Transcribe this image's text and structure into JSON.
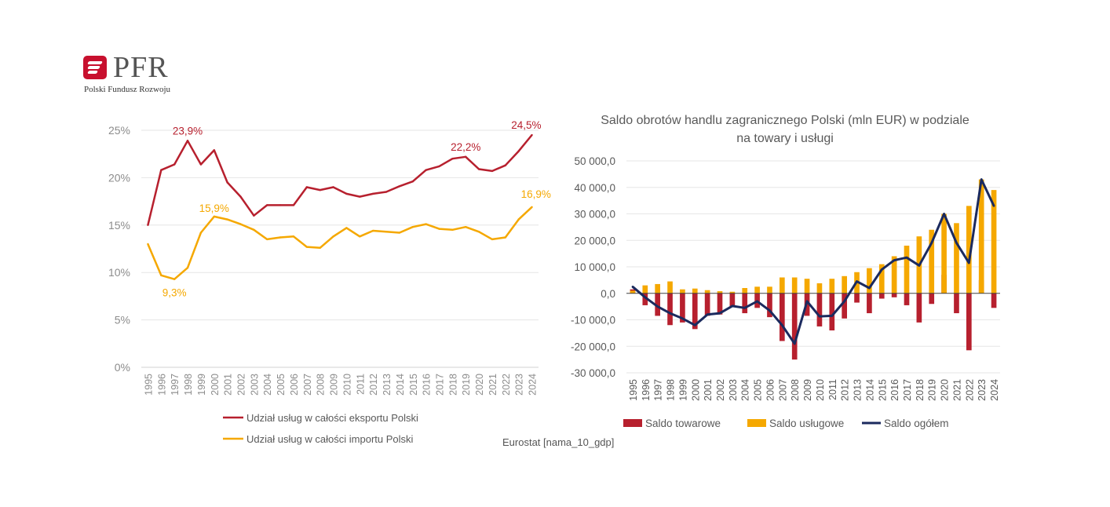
{
  "logo": {
    "brand": "PFR",
    "subtitle": "Polski Fundusz Rozwoju",
    "icon": "pfr-logo-icon"
  },
  "source": "Eurostat [nama_10_gdp]",
  "colors": {
    "red": "#b7202e",
    "orange": "#f5a800",
    "navy": "#1b2a5e",
    "axis": "#8c8c8c",
    "grid": "#e6e6e6",
    "text": "#595959"
  },
  "chart_data": [
    {
      "type": "line",
      "title": "",
      "xlabel": "",
      "ylabel": "",
      "x": [
        "1995",
        "1996",
        "1997",
        "1998",
        "1999",
        "2000",
        "2001",
        "2002",
        "2003",
        "2004",
        "2005",
        "2006",
        "2007",
        "2008",
        "2009",
        "2010",
        "2011",
        "2012",
        "2013",
        "2014",
        "2015",
        "2016",
        "2017",
        "2018",
        "2019",
        "2020",
        "2021",
        "2022",
        "2023",
        "2024"
      ],
      "ylim": [
        0,
        25
      ],
      "yticks": [
        "0%",
        "5%",
        "10%",
        "15%",
        "20%",
        "25%"
      ],
      "grid": true,
      "legend_position": "bottom",
      "series": [
        {
          "name": "Udział usług w całości eksportu Polski",
          "color": "#b7202e",
          "values": [
            15.0,
            20.8,
            21.4,
            23.9,
            21.4,
            22.9,
            19.5,
            18.0,
            16.0,
            17.1,
            17.1,
            17.1,
            19.0,
            18.7,
            19.0,
            18.3,
            18.0,
            18.3,
            18.5,
            19.1,
            19.6,
            20.8,
            21.2,
            22.0,
            22.2,
            20.9,
            20.7,
            21.3,
            22.8,
            24.5
          ]
        },
        {
          "name": "Udział usług w całości importu Polski",
          "color": "#f5a800",
          "values": [
            13.0,
            9.7,
            9.3,
            10.5,
            14.2,
            15.9,
            15.6,
            15.1,
            14.5,
            13.5,
            13.7,
            13.8,
            12.7,
            12.6,
            13.8,
            14.7,
            13.8,
            14.4,
            14.3,
            14.2,
            14.8,
            15.1,
            14.6,
            14.5,
            14.8,
            14.3,
            13.5,
            13.7,
            15.6,
            16.9
          ]
        }
      ],
      "annotations": [
        {
          "series": 0,
          "x": "1998",
          "label": "23,9%"
        },
        {
          "series": 0,
          "x": "2019",
          "label": "22,2%"
        },
        {
          "series": 0,
          "x": "2024",
          "label": "24,5%"
        },
        {
          "series": 1,
          "x": "1997",
          "label": "9,3%"
        },
        {
          "series": 1,
          "x": "2000",
          "label": "15,9%"
        },
        {
          "series": 1,
          "x": "2024",
          "label": "16,9%"
        }
      ]
    },
    {
      "type": "bar",
      "title": "Saldo obrotów handlu zagranicznego Polski (mln EUR) w podziale na towary i usługi",
      "xlabel": "",
      "ylabel": "",
      "categories": [
        "1995",
        "1996",
        "1997",
        "1998",
        "1999",
        "2000",
        "2001",
        "2002",
        "2003",
        "2004",
        "2005",
        "2006",
        "2007",
        "2008",
        "2009",
        "2010",
        "2011",
        "2012",
        "2013",
        "2014",
        "2015",
        "2016",
        "2017",
        "2018",
        "2019",
        "2020",
        "2021",
        "2022",
        "2023",
        "2024"
      ],
      "ylim": [
        -30000,
        50000
      ],
      "yticks": [
        "-30 000,0",
        "-20 000,0",
        "-10 000,0",
        "0,0",
        "10 000,0",
        "20 000,0",
        "30 000,0",
        "40 000,0",
        "50 000,0"
      ],
      "legend_position": "bottom",
      "series": [
        {
          "name": "Saldo towarowe",
          "color": "#b7202e",
          "values": [
            1500,
            -4500,
            -8500,
            -12000,
            -11000,
            -13500,
            -8500,
            -8000,
            -5000,
            -7500,
            -5500,
            -9000,
            -18000,
            -25000,
            -8500,
            -12500,
            -14000,
            -9500,
            -3500,
            -7500,
            -2000,
            -1500,
            -4500,
            -11000,
            -4000,
            7000,
            -7500,
            -21500,
            5000,
            -5500
          ]
        },
        {
          "name": "Saldo usługowe",
          "color": "#f5a800",
          "values": [
            1000,
            3000,
            3500,
            4500,
            1500,
            1800,
            1200,
            800,
            600,
            2000,
            2500,
            2500,
            6000,
            6000,
            5500,
            3800,
            5500,
            6500,
            8000,
            9500,
            11000,
            14000,
            18000,
            21500,
            24000,
            30000,
            26500,
            33000,
            43000,
            39000
          ]
        },
        {
          "name": "Saldo ogółem",
          "type": "line",
          "color": "#1b2a5e",
          "values": [
            2500,
            -1500,
            -5000,
            -7500,
            -9500,
            -12000,
            -8000,
            -7500,
            -4800,
            -5500,
            -3000,
            -6500,
            -12000,
            -19000,
            -3000,
            -8700,
            -8500,
            -3000,
            4500,
            2000,
            9000,
            12500,
            13500,
            10500,
            19000,
            30000,
            19000,
            11500,
            43000,
            33000
          ]
        }
      ]
    }
  ]
}
